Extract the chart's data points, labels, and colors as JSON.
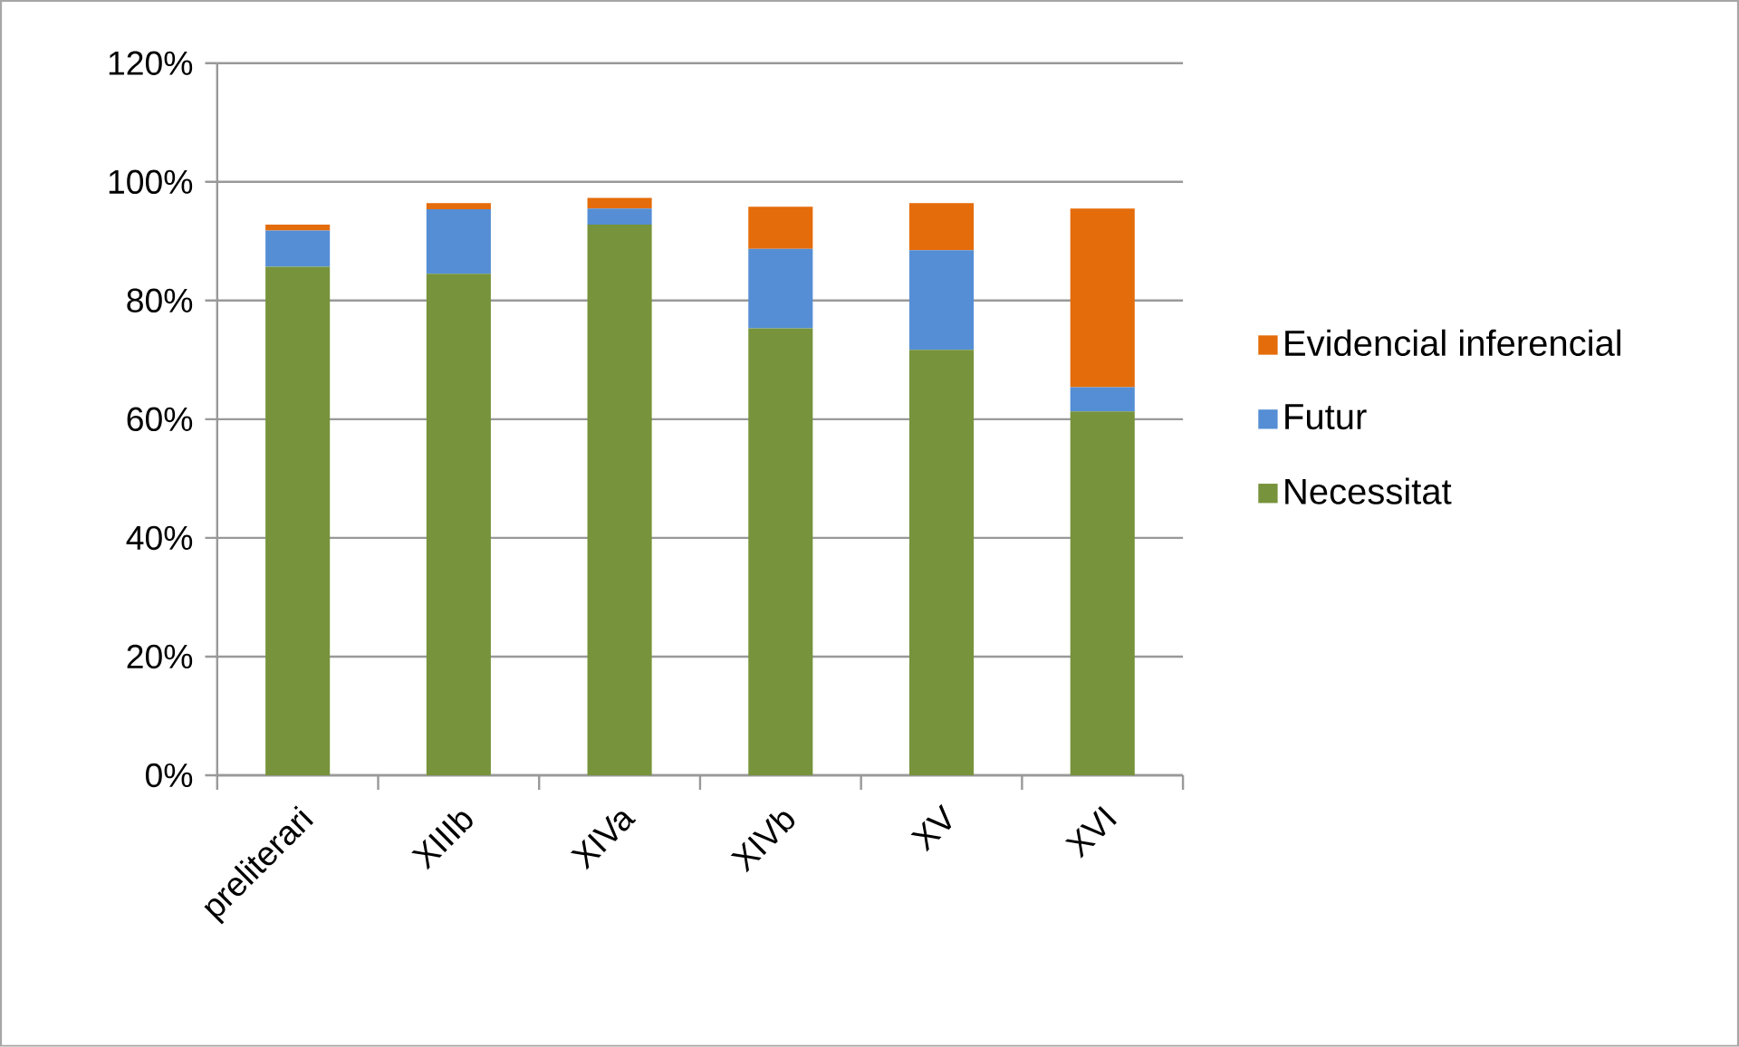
{
  "chart_data": {
    "type": "bar",
    "stacked": true,
    "categories": [
      "preliterari",
      "XIIIb",
      "XIVa",
      "XIVb",
      "XV",
      "XVI"
    ],
    "series": [
      {
        "name": "Necessitat",
        "color": "#77933c",
        "values": [
          85.7,
          84.5,
          92.8,
          75.3,
          71.7,
          61.3
        ]
      },
      {
        "name": "Futur",
        "color": "#558ed5",
        "values": [
          6.1,
          10.9,
          2.7,
          13.4,
          16.8,
          4.1
        ]
      },
      {
        "name": "Evidencial inferencial",
        "color": "#e46c0a",
        "values": [
          1.0,
          1.0,
          1.8,
          7.1,
          7.9,
          30.1
        ]
      }
    ],
    "ylim": [
      0,
      120
    ],
    "yticks": [
      {
        "value": 0,
        "label": "0%"
      },
      {
        "value": 20,
        "label": "20%"
      },
      {
        "value": 40,
        "label": "40%"
      },
      {
        "value": 60,
        "label": "60%"
      },
      {
        "value": 80,
        "label": "80%"
      },
      {
        "value": 100,
        "label": "100%"
      },
      {
        "value": 120,
        "label": "120%"
      }
    ],
    "grid": "y",
    "legend": "right"
  }
}
